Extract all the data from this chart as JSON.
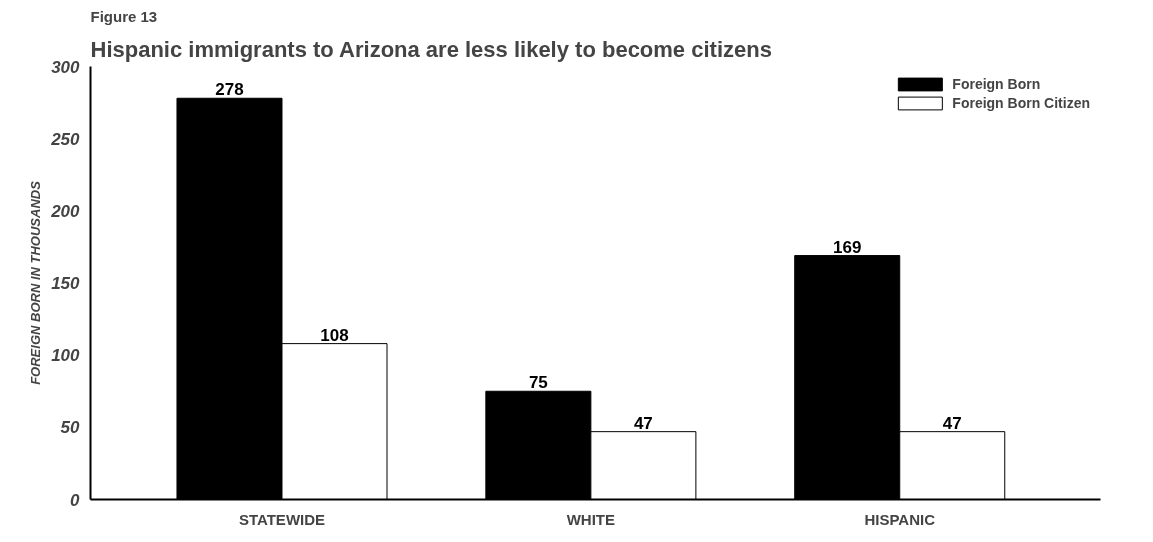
{
  "chart_data": {
    "type": "bar",
    "title": "Figure 13",
    "subtitle": "Hispanic immigrants to Arizona are less likely to become citizens",
    "ylabel": "FOREIGN BORN IN THOUSANDS",
    "categories": [
      "STATEWIDE",
      "WHITE",
      "HISPANIC"
    ],
    "series": [
      {
        "name": "Foreign Born",
        "color": "#000000",
        "values": [
          278,
          75,
          169
        ]
      },
      {
        "name": "Foreign Born Citizen",
        "color": "#ffffff",
        "values": [
          108,
          47,
          47
        ]
      }
    ],
    "ylim": [
      0,
      300
    ],
    "yticks": [
      0,
      50,
      100,
      150,
      200,
      250,
      300
    ],
    "data_labels": true,
    "legend": "top right",
    "grid": false
  }
}
